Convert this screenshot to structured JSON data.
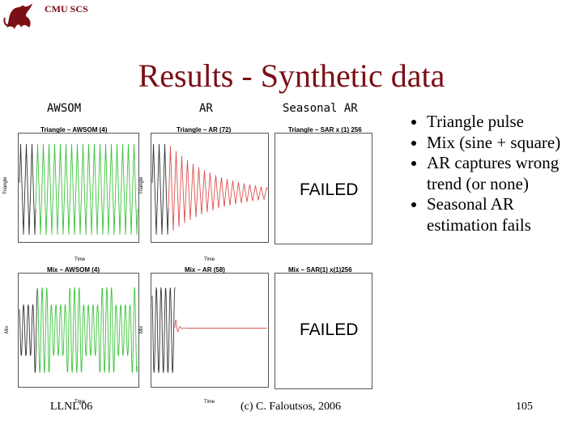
{
  "header": {
    "label": "CMU SCS"
  },
  "logo": {
    "icon": "dragon-logo-icon",
    "color": "#7a0f15"
  },
  "title": "Results - Synthetic data",
  "columns": [
    "AWSOM",
    "AR",
    "Seasonal AR"
  ],
  "plots": {
    "triangle_awsom_title": "Triangle – AWSOM (4)",
    "triangle_ar_title": "Triangle – AR (72)",
    "triangle_sar_title": "Triangle – SAR x (1) 256",
    "mix_awsom_title": "Mix – AWSOM (4)",
    "mix_ar_title": "Mix – AR (58)",
    "mix_sar_title": "Mix – SAR(1) x(1)256",
    "failed_text": "FAILED",
    "time_label": "Time",
    "triangle_ylabel": "Triangle",
    "mix_ylabel": "Mix"
  },
  "bullets": [
    "Triangle pulse",
    "Mix (sine + square)",
    "AR captures wrong trend (or none)",
    "Seasonal AR estimation fails"
  ],
  "footer": {
    "left": "LLNL'06",
    "center": "(c) C. Faloutsos, 2006",
    "page": "105"
  },
  "colors": {
    "accent": "#7a0f15",
    "observed": "#333333",
    "awsom_forecast": "#3cc33c",
    "ar_forecast": "#e05050"
  }
}
